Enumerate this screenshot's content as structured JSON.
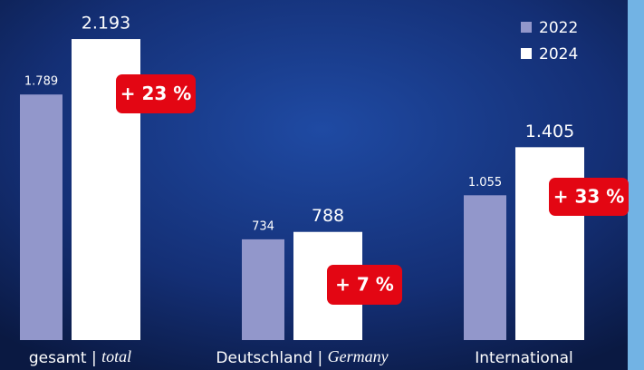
{
  "chart_data": {
    "type": "bar",
    "categories": [
      "gesamt | total",
      "Deutschland | Germany",
      "International"
    ],
    "series": [
      {
        "name": "2022",
        "color": "#9297cb",
        "values": [
          1789,
          734,
          1055
        ],
        "value_labels": [
          "1.789",
          "734",
          "1.055"
        ]
      },
      {
        "name": "2024",
        "color": "#ffffff",
        "values": [
          2193,
          788,
          1405
        ],
        "value_labels": [
          "2.193",
          "788",
          "1.405"
        ]
      }
    ],
    "annotations": [
      "+ 23 %",
      "+ 7 %",
      "+ 33 %"
    ],
    "annotation_color": "#e30613",
    "ylim": [
      0,
      2200
    ],
    "legend": "upper right"
  }
}
